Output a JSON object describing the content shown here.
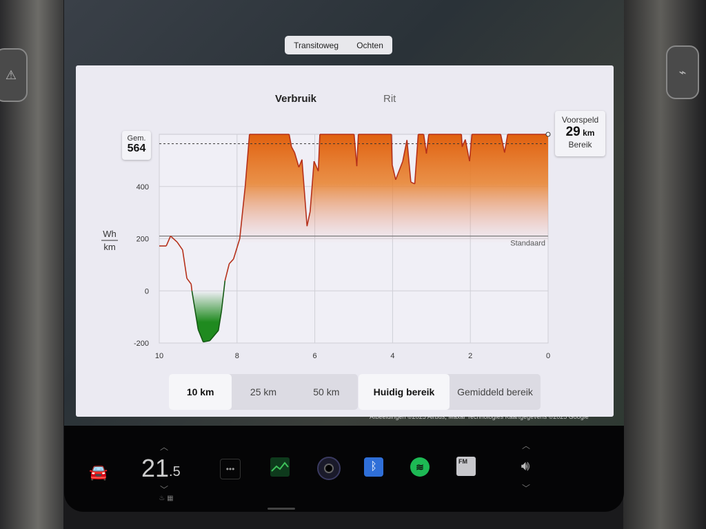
{
  "map": {
    "road_label": "Transitoweg",
    "place_label": "Ochten",
    "attribution": "Afbeeldingen ©2025 Airbus, Maxar Technologies Kaartgegevens ©2025 Google"
  },
  "tabs": [
    {
      "label": "Verbruik",
      "selected": true
    },
    {
      "label": "Rit",
      "selected": false
    }
  ],
  "average": {
    "label": "Gem.",
    "value": "564"
  },
  "predicted": {
    "label": "Voorspeld",
    "value": "29",
    "unit": "km",
    "sublabel": "Bereik"
  },
  "distance_options": [
    {
      "label": "10 km",
      "selected": true
    },
    {
      "label": "25 km",
      "selected": false
    },
    {
      "label": "50 km",
      "selected": false
    }
  ],
  "range_options": [
    {
      "label": "Huidig bereik",
      "selected": true
    },
    {
      "label": "Gemiddeld bereik",
      "selected": false
    }
  ],
  "climate": {
    "temp_int": "21",
    "temp_dec": ".5"
  },
  "dock_icons": [
    "car-icon",
    "more-icon",
    "energy-app-icon",
    "camera-icon",
    "bluetooth-icon",
    "spotify-icon",
    "radio-icon",
    "volume-icon"
  ],
  "radio_label": "FM",
  "colors": {
    "consumption_line": "#b5301a",
    "fill_high": "#e0600f",
    "fill_regen": "#1f8a1f",
    "bluetooth": "#2f6fd8",
    "spotify": "#1db954"
  },
  "chart_data": {
    "type": "area",
    "ylabel_top": "Wh",
    "ylabel_bottom": "km",
    "xlim": [
      10,
      0
    ],
    "ylim": [
      -200,
      600
    ],
    "xticks": [
      "10",
      "8",
      "6",
      "4",
      "2",
      "0"
    ],
    "yticks": [
      "-200",
      "0",
      "200",
      "400"
    ],
    "grid": true,
    "reference_line": {
      "label": "Standaard",
      "value": 210
    },
    "average_line": 564,
    "x": [
      10,
      9.82,
      9.71,
      9.54,
      9.4,
      9.29,
      9.18,
      9.16,
      9.0,
      8.87,
      8.7,
      8.48,
      8.4,
      8.31,
      8.2,
      8.09,
      7.93,
      7.79,
      7.68,
      6.66,
      6.6,
      6.52,
      6.41,
      6.33,
      6.2,
      6.12,
      6.02,
      5.91,
      5.87,
      4.99,
      4.92,
      4.88,
      4.03,
      4.01,
      3.92,
      3.74,
      3.63,
      3.53,
      3.43,
      3.34,
      3.2,
      3.13,
      3.07,
      2.23,
      2.21,
      2.13,
      2.02,
      1.96,
      1.22,
      1.12,
      1.04,
      0
    ],
    "y": [
      172,
      172,
      210,
      187,
      157,
      48,
      26,
      0,
      -148,
      -196,
      -191,
      -152,
      -78,
      39,
      104,
      122,
      200,
      400,
      600,
      600,
      552,
      530,
      474,
      503,
      248,
      304,
      497,
      459,
      600,
      600,
      478,
      600,
      600,
      483,
      426,
      496,
      578,
      417,
      410,
      600,
      600,
      526,
      600,
      600,
      552,
      580,
      497,
      600,
      600,
      530,
      600,
      600
    ]
  }
}
